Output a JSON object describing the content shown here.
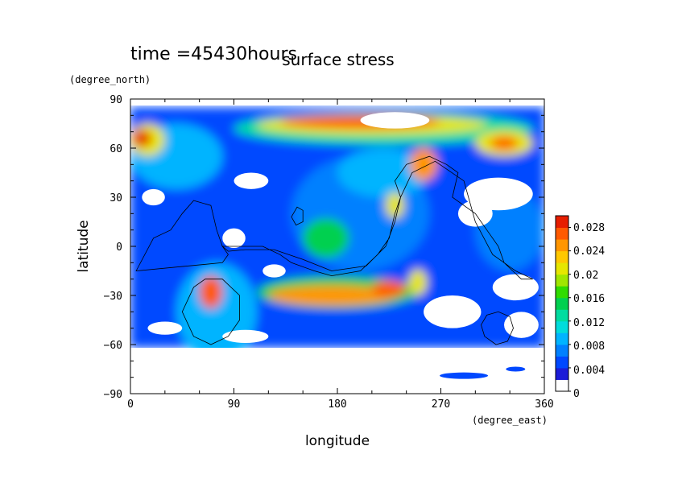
{
  "chart_data": {
    "type": "heatmap",
    "header": "time =45430hours",
    "title": "surface stress",
    "xlabel": "longitude",
    "ylabel": "latitude",
    "xunit": "(degree_east)",
    "yunit": "(degree_north)",
    "xlim": [
      0,
      360
    ],
    "ylim": [
      -90,
      90
    ],
    "xticks": [
      "0",
      "90",
      "180",
      "270",
      "360"
    ],
    "yticks": [
      "90",
      "60",
      "30",
      "0",
      "−30",
      "−60",
      "−90"
    ],
    "colorbar": {
      "min": 0,
      "max": 0.03,
      "labels": [
        "0.028",
        "0.024",
        "0.02",
        "0.016",
        "0.012",
        "0.008",
        "0.004",
        "0"
      ],
      "colors": [
        "#ffffff",
        "#1c1cd8",
        "#0048ff",
        "#0080ff",
        "#00b4ff",
        "#00dcdc",
        "#00dca0",
        "#00d050",
        "#30dc00",
        "#a0e600",
        "#e6e600",
        "#ffc800",
        "#ff9600",
        "#ff5a00",
        "#e61e00"
      ],
      "grid": "off"
    },
    "features": [
      {
        "name": "north-polar jet band",
        "lon": [
          95,
          340
        ],
        "lat": [
          65,
          80
        ],
        "max": 0.028
      },
      {
        "name": "southern mid-latitude band",
        "lon": [
          120,
          240
        ],
        "lat": [
          -35,
          -22
        ],
        "max": 0.026
      },
      {
        "name": "north-west high",
        "lon": [
          10
        ],
        "lat": [
          65
        ],
        "max": 0.028
      },
      {
        "name": "southern ring maximum",
        "lon": [
          70
        ],
        "lat": [
          -28
        ],
        "max": 0.028
      },
      {
        "name": "north-east high",
        "lon": [
          330
        ],
        "lat": [
          63
        ],
        "max": 0.026
      }
    ]
  }
}
